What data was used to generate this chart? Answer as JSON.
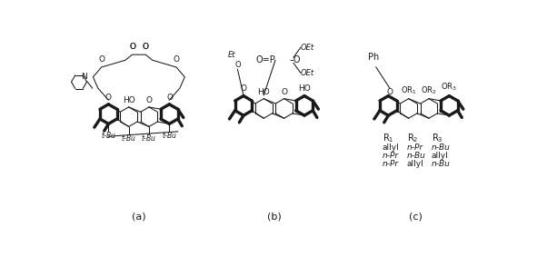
{
  "label_a": "(a)",
  "label_b": "(b)",
  "label_c": "(c)",
  "r_header": [
    "R$_1$",
    "R$_2$",
    "R$_3$"
  ],
  "r_rows": [
    [
      "allyl",
      "n-Pr",
      "n-Bu"
    ],
    [
      "n-Pr",
      "n-Bu",
      "allyl"
    ],
    [
      "n-Pr",
      "allyl",
      "n-Bu"
    ]
  ],
  "bg_color": "#ffffff",
  "text_color": "#1a1a1a",
  "font_size": 7.0,
  "label_font_size": 8.0
}
